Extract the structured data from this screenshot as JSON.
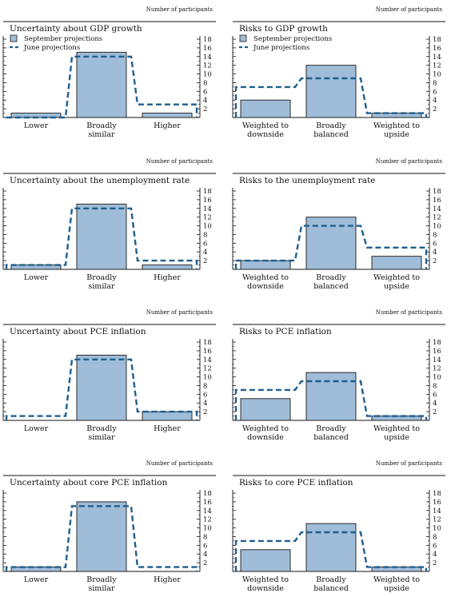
{
  "figure": {
    "units_label": "Number of participants"
  },
  "legend": {
    "bar_label": "September projections",
    "line_label": "June projections"
  },
  "colors": {
    "bar_fill": "#9fbcd8",
    "bar_stroke": "#1a1a1a",
    "june_line": "#1f5f8f",
    "axis": "#111111"
  },
  "chart_data": [
    {
      "type": "bar",
      "title": "Uncertainty about GDP growth",
      "categories": [
        "Lower",
        "Broadly similar",
        "Higher"
      ],
      "series": [
        {
          "name": "September projections",
          "values": [
            1,
            15,
            1
          ]
        },
        {
          "name": "June projections",
          "values": [
            0,
            14,
            3
          ]
        }
      ],
      "ylim": [
        0,
        18
      ],
      "yticks": [
        2,
        4,
        6,
        8,
        10,
        12,
        14,
        16,
        18
      ],
      "legend": true
    },
    {
      "type": "bar",
      "title": "Risks to GDP growth",
      "categories": [
        "Weighted to downside",
        "Broadly balanced",
        "Weighted to upside"
      ],
      "series": [
        {
          "name": "September projections",
          "values": [
            4,
            12,
            1
          ]
        },
        {
          "name": "June projections",
          "values": [
            7,
            9,
            1
          ]
        }
      ],
      "ylim": [
        0,
        18
      ],
      "yticks": [
        2,
        4,
        6,
        8,
        10,
        12,
        14,
        16,
        18
      ],
      "legend": true
    },
    {
      "type": "bar",
      "title": "Uncertainty about the unemployment rate",
      "categories": [
        "Lower",
        "Broadly similar",
        "Higher"
      ],
      "series": [
        {
          "name": "September projections",
          "values": [
            1,
            15,
            1
          ]
        },
        {
          "name": "June projections",
          "values": [
            1,
            14,
            2
          ]
        }
      ],
      "ylim": [
        0,
        18
      ],
      "yticks": [
        2,
        4,
        6,
        8,
        10,
        12,
        14,
        16,
        18
      ],
      "legend": false
    },
    {
      "type": "bar",
      "title": "Risks to the unemployment rate",
      "categories": [
        "Weighted to downside",
        "Broadly balanced",
        "Weighted to upside"
      ],
      "series": [
        {
          "name": "September projections",
          "values": [
            2,
            12,
            3
          ]
        },
        {
          "name": "June projections",
          "values": [
            2,
            10,
            5
          ]
        }
      ],
      "ylim": [
        0,
        18
      ],
      "yticks": [
        2,
        4,
        6,
        8,
        10,
        12,
        14,
        16,
        18
      ],
      "legend": false
    },
    {
      "type": "bar",
      "title": "Uncertainty about PCE inflation",
      "categories": [
        "Lower",
        "Broadly similar",
        "Higher"
      ],
      "series": [
        {
          "name": "September projections",
          "values": [
            0,
            15,
            2
          ]
        },
        {
          "name": "June projections",
          "values": [
            1,
            14,
            2
          ]
        }
      ],
      "ylim": [
        0,
        18
      ],
      "yticks": [
        2,
        4,
        6,
        8,
        10,
        12,
        14,
        16,
        18
      ],
      "legend": false
    },
    {
      "type": "bar",
      "title": "Risks to PCE inflation",
      "categories": [
        "Weighted to downside",
        "Broadly balanced",
        "Weighted to upside"
      ],
      "series": [
        {
          "name": "September projections",
          "values": [
            5,
            11,
            1
          ]
        },
        {
          "name": "June projections",
          "values": [
            7,
            9,
            1
          ]
        }
      ],
      "ylim": [
        0,
        18
      ],
      "yticks": [
        2,
        4,
        6,
        8,
        10,
        12,
        14,
        16,
        18
      ],
      "legend": false
    },
    {
      "type": "bar",
      "title": "Uncertainty about core PCE inflation",
      "categories": [
        "Lower",
        "Broadly similar",
        "Higher"
      ],
      "series": [
        {
          "name": "September projections",
          "values": [
            1,
            16,
            0
          ]
        },
        {
          "name": "June projections",
          "values": [
            1,
            15,
            1
          ]
        }
      ],
      "ylim": [
        0,
        18
      ],
      "yticks": [
        2,
        4,
        6,
        8,
        10,
        12,
        14,
        16,
        18
      ],
      "legend": false
    },
    {
      "type": "bar",
      "title": "Risks to core PCE inflation",
      "categories": [
        "Weighted to downside",
        "Broadly balanced",
        "Weighted to upside"
      ],
      "series": [
        {
          "name": "September projections",
          "values": [
            5,
            11,
            1
          ]
        },
        {
          "name": "June projections",
          "values": [
            7,
            9,
            1
          ]
        }
      ],
      "ylim": [
        0,
        18
      ],
      "yticks": [
        2,
        4,
        6,
        8,
        10,
        12,
        14,
        16,
        18
      ],
      "legend": false
    }
  ]
}
